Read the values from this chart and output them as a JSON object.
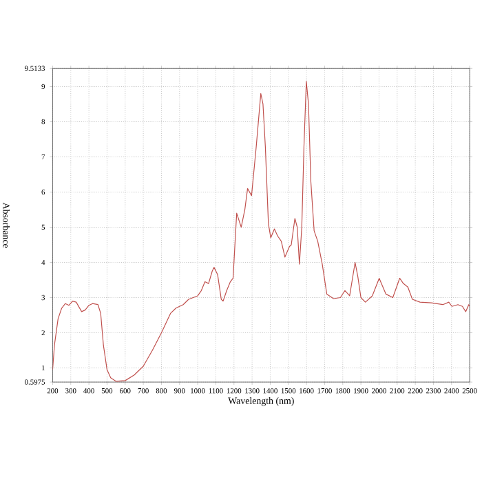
{
  "chart_data": {
    "type": "line",
    "xlabel": "Wavelength (nm)",
    "ylabel": "Absorbance",
    "xlim": [
      200,
      2500
    ],
    "ylim": [
      0.5975,
      9.5133
    ],
    "xticks": [
      200,
      300,
      400,
      500,
      600,
      700,
      800,
      900,
      1000,
      1100,
      1200,
      1300,
      1400,
      1500,
      1600,
      1700,
      1800,
      1900,
      2000,
      2100,
      2200,
      2300,
      2400,
      2500
    ],
    "yticks": [
      0.5975,
      1,
      2,
      3,
      4,
      5,
      6,
      7,
      8,
      9,
      9.5133
    ],
    "grid": true,
    "marker": "none",
    "line_style": "solid",
    "series": [
      {
        "color": "#c0504d",
        "x": [
          200,
          210,
          230,
          250,
          270,
          290,
          310,
          330,
          360,
          380,
          400,
          420,
          450,
          465,
          480,
          500,
          520,
          550,
          600,
          650,
          700,
          750,
          800,
          850,
          880,
          920,
          950,
          1000,
          1020,
          1040,
          1060,
          1080,
          1090,
          1110,
          1130,
          1140,
          1160,
          1180,
          1195,
          1215,
          1240,
          1260,
          1275,
          1297,
          1323,
          1348,
          1360,
          1373,
          1390,
          1403,
          1423,
          1441,
          1461,
          1481,
          1506,
          1516,
          1536,
          1549,
          1561,
          1574,
          1586,
          1599,
          1611,
          1624,
          1642,
          1662,
          1687,
          1712,
          1749,
          1787,
          1812,
          1838,
          1868,
          1883,
          1900,
          1925,
          1963,
          2001,
          2038,
          2076,
          2114,
          2134,
          2159,
          2184,
          2226,
          2289,
          2352,
          2385,
          2402,
          2435,
          2460,
          2478,
          2495,
          2500
        ],
        "values": [
          0.95,
          1.65,
          2.4,
          2.7,
          2.83,
          2.78,
          2.9,
          2.87,
          2.6,
          2.65,
          2.78,
          2.83,
          2.8,
          2.55,
          1.65,
          0.95,
          0.72,
          0.62,
          0.64,
          0.8,
          1.05,
          1.5,
          2.0,
          2.55,
          2.7,
          2.8,
          2.95,
          3.05,
          3.2,
          3.45,
          3.4,
          3.75,
          3.86,
          3.65,
          2.95,
          2.9,
          3.2,
          3.45,
          3.55,
          5.4,
          5.0,
          5.5,
          6.1,
          5.9,
          7.3,
          8.8,
          8.5,
          7.3,
          5.1,
          4.7,
          4.95,
          4.75,
          4.6,
          4.15,
          4.45,
          4.5,
          5.25,
          5.0,
          3.95,
          5.0,
          7.3,
          9.15,
          8.5,
          6.3,
          4.9,
          4.6,
          3.95,
          3.1,
          2.97,
          3.0,
          3.2,
          3.05,
          4.0,
          3.6,
          3.0,
          2.87,
          3.05,
          3.55,
          3.1,
          3.0,
          3.55,
          3.4,
          3.3,
          2.95,
          2.87,
          2.85,
          2.8,
          2.87,
          2.75,
          2.8,
          2.75,
          2.6,
          2.8,
          2.75
        ]
      }
    ]
  }
}
